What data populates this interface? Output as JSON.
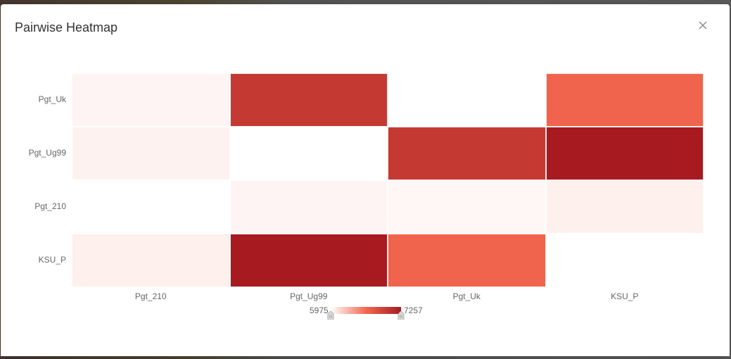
{
  "modal": {
    "title": "Pairwise Heatmap"
  },
  "chart_data": {
    "type": "heatmap",
    "title": "Pairwise Heatmap",
    "x_categories": [
      "Pgt_210",
      "Pgt_Ug99",
      "Pgt_Uk",
      "KSU_P"
    ],
    "y_categories": [
      "Pgt_Uk",
      "Pgt_Ug99",
      "Pgt_210",
      "KSU_P"
    ],
    "values": [
      [
        6020,
        7000,
        null,
        6650
      ],
      [
        6030,
        null,
        7000,
        7257
      ],
      [
        null,
        6020,
        6010,
        6040
      ],
      [
        6040,
        7257,
        6650,
        null
      ]
    ],
    "value_range": [
      5975,
      7257
    ],
    "color_scale": [
      "#ffffff",
      "#f4684f",
      "#a61a20"
    ],
    "legend": {
      "min_label": "5975",
      "max_label": "7257"
    }
  }
}
